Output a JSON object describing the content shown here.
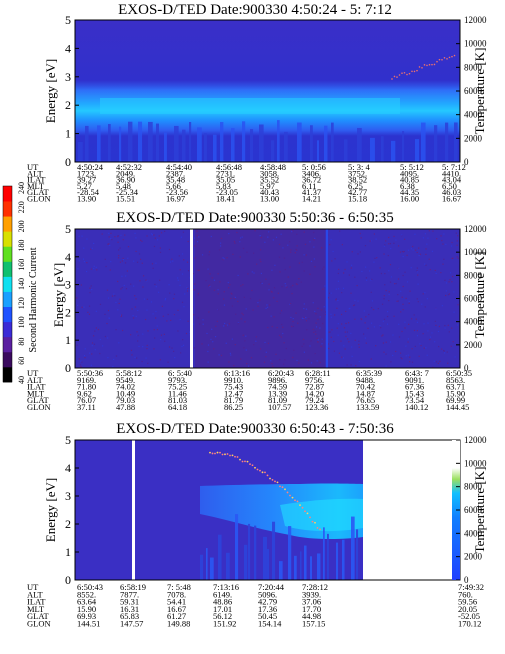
{
  "chart_data": [
    {
      "type": "heatmap",
      "title": "EXOS-D/TED   Date:900330   4:50:24 - 5: 7:12",
      "ylabel": "Energy [eV]",
      "y2label": "Temperature [K]",
      "ylim": [
        0,
        5
      ],
      "y2lim": [
        0,
        12000
      ],
      "yticks": [
        "0",
        "1",
        "2",
        "3",
        "4",
        "5"
      ],
      "y2ticks": [
        "0",
        "2000",
        "4000",
        "6000",
        "8000",
        "10000",
        "12000"
      ],
      "band": {
        "center_ev": 2.2,
        "low_ev": 1.0,
        "high_ev": 2.9
      },
      "table": {
        "rows": [
          "UT",
          "ALT",
          "ILAT",
          "MLT",
          "GLAT",
          "GLON"
        ],
        "columns": [
          [
            "4:50:24",
            "1723.",
            "39.27",
            "5.27",
            "-28.54",
            "13.90"
          ],
          [
            "4:52:32",
            "2049.",
            "36.90",
            "5.48",
            "-25.34",
            "15.51"
          ],
          [
            "4:54:40",
            "2387.",
            "35.48",
            "5.66",
            "-23.56",
            "16.97"
          ],
          [
            "4:56:48",
            "2731.",
            "35.05",
            "5.83",
            "-23.05",
            "18.41"
          ],
          [
            "4:58:48",
            "3058.",
            "35.52",
            "5.97",
            "40.43",
            "13.00"
          ],
          [
            "5: 0:56",
            "3406.",
            "36.72",
            "6.11",
            "41.37",
            "14.21"
          ],
          [
            "5: 3: 4",
            "3752.",
            "38.52",
            "6.25",
            "42.77",
            "15.18"
          ],
          [
            "5: 5:12",
            "4095.",
            "40.85",
            "6.38",
            "44.35",
            "16.00"
          ],
          [
            "5: 7:12",
            "4410.",
            "43.04",
            "6.50",
            "46.03",
            "16.67"
          ]
        ]
      }
    },
    {
      "type": "heatmap",
      "title": "EXOS-D/TED   Date:900330   5:50:36 - 6:50:35",
      "ylabel": "Energy [eV]",
      "y2label": "Temperature [K]",
      "ylim": [
        0,
        5
      ],
      "y2lim": [
        0,
        12000
      ],
      "yticks": [
        "0",
        "1",
        "2",
        "3",
        "4",
        "5"
      ],
      "y2ticks": [
        "0",
        "2000",
        "4000",
        "6000",
        "8000",
        "10000",
        "12000"
      ],
      "colorbar": {
        "label": "Second Harmonic Current",
        "ticks": [
          "40",
          "60",
          "80",
          "100",
          "120",
          "140",
          "160",
          "180",
          "200",
          "220",
          "240"
        ],
        "colors": [
          "#000000",
          "#3a0a5e",
          "#5a1fa0",
          "#3b2bd6",
          "#1f52ff",
          "#1aa0ff",
          "#10e0f0",
          "#10c070",
          "#5fe020",
          "#d8e000",
          "#ffa000",
          "#ff3000",
          "#ff0000"
        ]
      },
      "table": {
        "rows": [
          "UT",
          "ALT",
          "ILAT",
          "MLT",
          "GLAT",
          "GLON"
        ],
        "columns": [
          [
            "5:50:36",
            "9169.",
            "71.80",
            "9.62",
            "76.07",
            "37.11"
          ],
          [
            "5:58:12",
            "9549.",
            "74.02",
            "10.49",
            "79.03",
            "47.88"
          ],
          [
            "6: 5:40",
            "9793.",
            "75.25",
            "11.46",
            "81.03",
            "64.18"
          ],
          [
            "6:13:16",
            "9910.",
            "75.43",
            "12.47",
            "81.79",
            "86.25"
          ],
          [
            "6:20:43",
            "9896.",
            "74.59",
            "13.39",
            "81.09",
            "107.57"
          ],
          [
            "6:28:11",
            "9756.",
            "72.87",
            "14.20",
            "79.24",
            "123.36"
          ],
          [
            "6:35:39",
            "9488.",
            "70.42",
            "14.87",
            "76.65",
            "133.59"
          ],
          [
            "6:43: 7",
            "9091.",
            "67.36",
            "15.43",
            "73.54",
            "140.12"
          ],
          [
            "6:50:35",
            "8563.",
            "63.71",
            "15.90",
            "69.99",
            "144.45"
          ]
        ]
      }
    },
    {
      "type": "heatmap",
      "title": "EXOS-D/TED   Date:900330   6:50:43 - 7:50:36",
      "ylabel": "Energy [eV]",
      "y2label": "Temperature [K]",
      "ylim": [
        0,
        5
      ],
      "y2lim": [
        0,
        12000
      ],
      "yticks": [
        "0",
        "1",
        "2",
        "3",
        "4",
        "5"
      ],
      "y2ticks": [
        "0",
        "2000",
        "4000",
        "6000",
        "8000",
        "10000",
        "12000"
      ],
      "band": {
        "center_ev": 2.4,
        "low_ev": 1.1,
        "high_ev": 3.4
      },
      "table": {
        "rows": [
          "UT",
          "ALT",
          "ILAT",
          "MLT",
          "GLAT",
          "GLON"
        ],
        "columns": [
          [
            "6:50:43",
            "8552.",
            "63.64",
            "15.90",
            "69.93",
            "144.51"
          ],
          [
            "6:58:19",
            "7877.",
            "59.31",
            "16.31",
            "65.83",
            "147.57"
          ],
          [
            "7: 5:48",
            "7078.",
            "54.41",
            "16.67",
            "61.27",
            "149.88"
          ],
          [
            "7:13:16",
            "6149.",
            "48.86",
            "17.01",
            "56.12",
            "151.92"
          ],
          [
            "7:20:44",
            "5096.",
            "42.79",
            "17.36",
            "50.45",
            "154.14"
          ],
          [
            "7:28:12",
            "3939.",
            "37.06",
            "17.70",
            "44.98",
            "157.15"
          ],
          [
            "7:49:32",
            "760.",
            "59.56",
            "20.05",
            "-52.05",
            "170.12"
          ]
        ]
      }
    }
  ]
}
